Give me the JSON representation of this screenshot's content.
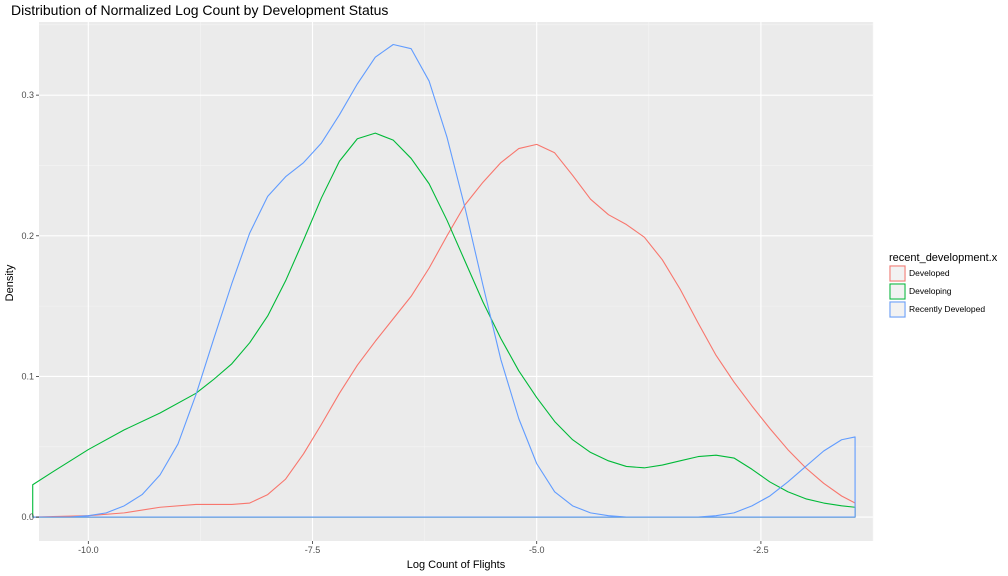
{
  "chart_data": {
    "type": "density",
    "title": "Distribution of Normalized Log Count by Development Status",
    "xlabel": "Log Count of Flights",
    "ylabel": "Density",
    "xlim": [
      -10.55,
      -1.25
    ],
    "ylim": [
      -0.017,
      0.352
    ],
    "x_ticks": [
      -10.0,
      -7.5,
      -5.0,
      -2.5
    ],
    "x_tick_labels": [
      "-10.0",
      "-7.5",
      "-5.0",
      "-2.5"
    ],
    "y_ticks": [
      0.0,
      0.1,
      0.2,
      0.3
    ],
    "y_tick_labels": [
      "0.0",
      "0.1",
      "0.2",
      "0.3"
    ],
    "grid": true,
    "background": "#EBEBEB",
    "legend": {
      "title": "recent_development.x",
      "placement": "right"
    },
    "series": [
      {
        "name": "Developed",
        "color": "#F8766D",
        "x": [
          -10.62,
          -10.0,
          -9.6,
          -9.2,
          -8.8,
          -8.4,
          -8.2,
          -8.0,
          -7.8,
          -7.6,
          -7.4,
          -7.2,
          -7.0,
          -6.8,
          -6.6,
          -6.4,
          -6.2,
          -6.0,
          -5.8,
          -5.6,
          -5.4,
          -5.2,
          -5.0,
          -4.8,
          -4.6,
          -4.4,
          -4.2,
          -4.0,
          -3.8,
          -3.6,
          -3.4,
          -3.2,
          -3.0,
          -2.8,
          -2.6,
          -2.4,
          -2.2,
          -2.0,
          -1.8,
          -1.6,
          -1.45
        ],
        "y": [
          0.0,
          0.001,
          0.003,
          0.007,
          0.009,
          0.009,
          0.01,
          0.016,
          0.027,
          0.045,
          0.066,
          0.088,
          0.108,
          0.125,
          0.141,
          0.157,
          0.177,
          0.2,
          0.222,
          0.238,
          0.252,
          0.262,
          0.265,
          0.259,
          0.243,
          0.226,
          0.215,
          0.208,
          0.199,
          0.183,
          0.162,
          0.138,
          0.115,
          0.096,
          0.079,
          0.063,
          0.048,
          0.035,
          0.024,
          0.015,
          0.01
        ]
      },
      {
        "name": "Developing",
        "color": "#00BA38",
        "x": [
          -10.62,
          -10.4,
          -10.0,
          -9.6,
          -9.2,
          -8.8,
          -8.6,
          -8.4,
          -8.2,
          -8.0,
          -7.8,
          -7.6,
          -7.4,
          -7.2,
          -7.0,
          -6.8,
          -6.6,
          -6.4,
          -6.2,
          -6.0,
          -5.8,
          -5.6,
          -5.4,
          -5.2,
          -5.0,
          -4.8,
          -4.6,
          -4.4,
          -4.2,
          -4.0,
          -3.8,
          -3.6,
          -3.4,
          -3.2,
          -3.0,
          -2.8,
          -2.6,
          -2.4,
          -2.2,
          -2.0,
          -1.8,
          -1.6,
          -1.45
        ],
        "y": [
          0.023,
          0.032,
          0.048,
          0.062,
          0.074,
          0.088,
          0.098,
          0.109,
          0.124,
          0.143,
          0.168,
          0.197,
          0.227,
          0.253,
          0.269,
          0.273,
          0.268,
          0.255,
          0.237,
          0.211,
          0.182,
          0.153,
          0.127,
          0.104,
          0.085,
          0.068,
          0.055,
          0.046,
          0.04,
          0.036,
          0.035,
          0.037,
          0.04,
          0.043,
          0.044,
          0.042,
          0.034,
          0.025,
          0.018,
          0.013,
          0.01,
          0.008,
          0.007
        ]
      },
      {
        "name": "Recently Developed",
        "color": "#619CFF",
        "x": [
          -10.62,
          -10.2,
          -10.0,
          -9.8,
          -9.6,
          -9.4,
          -9.2,
          -9.0,
          -8.8,
          -8.6,
          -8.4,
          -8.2,
          -8.0,
          -7.8,
          -7.6,
          -7.4,
          -7.2,
          -7.0,
          -6.8,
          -6.6,
          -6.4,
          -6.2,
          -6.0,
          -5.8,
          -5.6,
          -5.4,
          -5.2,
          -5.0,
          -4.8,
          -4.6,
          -4.4,
          -4.2,
          -4.0,
          -3.6,
          -3.2,
          -3.0,
          -2.8,
          -2.6,
          -2.4,
          -2.2,
          -2.0,
          -1.8,
          -1.6,
          -1.45
        ],
        "y": [
          0.0,
          0.0,
          0.001,
          0.003,
          0.008,
          0.016,
          0.03,
          0.052,
          0.087,
          0.127,
          0.166,
          0.202,
          0.228,
          0.242,
          0.252,
          0.266,
          0.286,
          0.308,
          0.327,
          0.336,
          0.333,
          0.31,
          0.27,
          0.22,
          0.165,
          0.112,
          0.07,
          0.038,
          0.018,
          0.008,
          0.003,
          0.001,
          0.0,
          0.0,
          0.0,
          0.001,
          0.003,
          0.008,
          0.015,
          0.025,
          0.036,
          0.047,
          0.055,
          0.057
        ]
      }
    ]
  }
}
